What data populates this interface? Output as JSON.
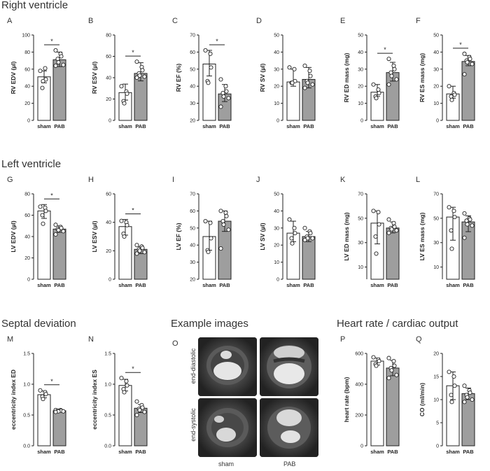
{
  "sections": {
    "right": "Right ventricle",
    "left": "Left ventricle",
    "septal": "Septal deviation",
    "example": "Example images",
    "heart": "Heart rate / cardiac output"
  },
  "colors": {
    "sham": "#ffffff",
    "pab": "#9e9e9e",
    "stroke": "#222222"
  },
  "images": {
    "col_labels": [
      "sham",
      "PAB"
    ],
    "row_labels": [
      "end-diastolic",
      "end-systolic"
    ]
  },
  "chart_data": [
    {
      "letter": "A",
      "type": "bar",
      "categories": [
        "sham",
        "PAB"
      ],
      "ylabel": "RV EDV (µl)",
      "yticks": [
        0,
        20,
        40,
        60,
        80,
        100
      ],
      "ylim": [
        0,
        100
      ],
      "means": [
        51,
        71
      ],
      "err": [
        [
          44,
          58
        ],
        [
          63,
          80
        ]
      ],
      "points": [
        [
          58,
          61,
          48,
          38,
          46
        ],
        [
          82,
          78,
          75,
          72,
          68,
          65,
          64
        ]
      ],
      "sig": true
    },
    {
      "letter": "B",
      "type": "bar",
      "categories": [
        "sham",
        "PAB"
      ],
      "ylabel": "RV ESV (µl)",
      "yticks": [
        0,
        20,
        40,
        60,
        80
      ],
      "ylim": [
        0,
        80
      ],
      "means": [
        26,
        44
      ],
      "err": [
        [
          19,
          34
        ],
        [
          37,
          54
        ]
      ],
      "points": [
        [
          32,
          27,
          25,
          18,
          16
        ],
        [
          55,
          50,
          47,
          44,
          42,
          41,
          40
        ]
      ],
      "sig": true
    },
    {
      "letter": "C",
      "type": "bar",
      "categories": [
        "sham",
        "PAB"
      ],
      "ylabel": "RV EF (%)",
      "yticks": [
        20,
        30,
        40,
        50,
        60,
        70
      ],
      "ylim": [
        20,
        70
      ],
      "means": [
        53,
        35.5
      ],
      "err": [
        [
          46,
          61
        ],
        [
          31,
          41
        ]
      ],
      "points": [
        [
          61,
          59,
          51,
          43,
          42
        ],
        [
          44,
          40,
          37,
          36,
          34,
          33,
          28
        ]
      ],
      "sig": true
    },
    {
      "letter": "D",
      "type": "bar",
      "categories": [
        "sham",
        "PAB"
      ],
      "ylabel": "RV SV (µl)",
      "yticks": [
        0,
        10,
        20,
        30,
        40,
        50
      ],
      "ylim": [
        0,
        50
      ],
      "means": [
        22.5,
        24
      ],
      "err": [
        [
          20,
          30
        ],
        [
          19,
          31
        ]
      ],
      "points": [
        [
          31,
          30,
          23,
          22,
          22
        ],
        [
          32,
          29,
          26,
          23,
          22,
          21,
          19
        ]
      ],
      "sig": false
    },
    {
      "letter": "E",
      "type": "bar",
      "categories": [
        "sham",
        "PAB"
      ],
      "ylabel": "RV ED mass (mg)",
      "yticks": [
        0,
        10,
        20,
        30,
        40,
        50
      ],
      "ylim": [
        0,
        50
      ],
      "means": [
        16.5,
        28
      ],
      "err": [
        [
          14,
          21
        ],
        [
          23,
          34
        ]
      ],
      "points": [
        [
          21,
          18,
          16,
          14,
          13
        ],
        [
          36,
          32,
          30,
          28,
          26,
          24,
          21
        ]
      ],
      "sig": true
    },
    {
      "letter": "F",
      "type": "bar",
      "categories": [
        "sham",
        "PAB"
      ],
      "ylabel": "RV ES mass (mg)",
      "yticks": [
        0,
        10,
        20,
        30,
        40,
        50
      ],
      "ylim": [
        0,
        50
      ],
      "means": [
        15.5,
        34.5
      ],
      "err": [
        [
          13,
          20
        ],
        [
          32,
          38
        ]
      ],
      "points": [
        [
          20,
          16,
          15,
          14,
          12
        ],
        [
          39,
          37,
          36,
          35,
          34,
          33,
          27
        ]
      ],
      "sig": true
    },
    {
      "letter": "G",
      "type": "bar",
      "categories": [
        "sham",
        "PAB"
      ],
      "ylabel": "LV EDV (µl)",
      "yticks": [
        0,
        20,
        40,
        60,
        80
      ],
      "ylim": [
        0,
        80
      ],
      "means": [
        64,
        47
      ],
      "err": [
        [
          57,
          70
        ],
        [
          44,
          50
        ]
      ],
      "points": [
        [
          68,
          67,
          64,
          60,
          52
        ],
        [
          51,
          49,
          48,
          47,
          46,
          45,
          42
        ]
      ],
      "sig": true
    },
    {
      "letter": "H",
      "type": "bar",
      "categories": [
        "sham",
        "PAB"
      ],
      "ylabel": "LV ESV (µl)",
      "yticks": [
        0,
        20,
        40,
        60
      ],
      "ylim": [
        0,
        60
      ],
      "means": [
        37,
        21
      ],
      "err": [
        [
          31,
          42
        ],
        [
          18,
          23
        ]
      ],
      "points": [
        [
          41,
          40,
          38,
          32,
          30
        ],
        [
          24,
          23,
          22,
          21,
          20,
          19,
          18
        ]
      ],
      "sig": true
    },
    {
      "letter": "I",
      "type": "bar",
      "categories": [
        "sham",
        "PAB"
      ],
      "ylabel": "LV EF (%)",
      "yticks": [
        20,
        30,
        40,
        50,
        60,
        70
      ],
      "ylim": [
        20,
        70
      ],
      "means": [
        45,
        54
      ],
      "err": [
        [
          37,
          54
        ],
        [
          48,
          60
        ]
      ],
      "points": [
        [
          54,
          53,
          44,
          37,
          36
        ],
        [
          60,
          59,
          57,
          54,
          52,
          49,
          38
        ]
      ],
      "sig": false
    },
    {
      "letter": "J",
      "type": "bar",
      "categories": [
        "sham",
        "PAB"
      ],
      "ylabel": "LV SV (µl)",
      "yticks": [
        0,
        10,
        20,
        30,
        40,
        50
      ],
      "ylim": [
        0,
        50
      ],
      "means": [
        27,
        25
      ],
      "err": [
        [
          22,
          34
        ],
        [
          22,
          28
        ]
      ],
      "points": [
        [
          35,
          30,
          27,
          24,
          21
        ],
        [
          30,
          28,
          27,
          25,
          24,
          24,
          23
        ]
      ],
      "sig": false
    },
    {
      "letter": "K",
      "type": "bar",
      "categories": [
        "sham",
        "PAB"
      ],
      "ylabel": "LV ED mass (mg)",
      "yticks": [
        10,
        30,
        50,
        70
      ],
      "ylim": [
        0,
        70
      ],
      "means": [
        46,
        42
      ],
      "err": [
        [
          29,
          56
        ],
        [
          38,
          47
        ]
      ],
      "points": [
        [
          56,
          55,
          45,
          35,
          21
        ],
        [
          49,
          46,
          43,
          42,
          41,
          40,
          38
        ]
      ],
      "sig": false
    },
    {
      "letter": "L",
      "type": "bar",
      "categories": [
        "sham",
        "PAB"
      ],
      "ylabel": "LV ES mass (mg)",
      "yticks": [
        10,
        30,
        50,
        70
      ],
      "ylim": [
        0,
        70
      ],
      "means": [
        51,
        47
      ],
      "err": [
        [
          32,
          59
        ],
        [
          39,
          52
        ]
      ],
      "points": [
        [
          59,
          56,
          51,
          40,
          25
        ],
        [
          54,
          50,
          49,
          48,
          45,
          44,
          34
        ]
      ],
      "sig": false
    },
    {
      "letter": "M",
      "type": "bar",
      "categories": [
        "sham",
        "PAB"
      ],
      "ylabel": "eccentricity index ED",
      "yticks": [
        0.0,
        0.5,
        1.0,
        1.5
      ],
      "ylim": [
        0,
        1.5
      ],
      "means": [
        0.83,
        0.57
      ],
      "err": [
        [
          0.78,
          0.89
        ],
        [
          0.55,
          0.58
        ]
      ],
      "points": [
        [
          0.9,
          0.87,
          0.84,
          0.8,
          0.76
        ],
        [
          0.58,
          0.58,
          0.57,
          0.57,
          0.56,
          0.56,
          0.55
        ]
      ],
      "sig": true
    },
    {
      "letter": "N",
      "type": "bar",
      "categories": [
        "sham",
        "PAB"
      ],
      "ylabel": "eccentricity index ES",
      "yticks": [
        0.0,
        0.5,
        1.0,
        1.5
      ],
      "ylim": [
        0,
        1.5
      ],
      "means": [
        0.98,
        0.61
      ],
      "err": [
        [
          0.89,
          1.08
        ],
        [
          0.54,
          0.67
        ]
      ],
      "points": [
        [
          1.1,
          1.05,
          0.98,
          0.92,
          0.87
        ],
        [
          0.72,
          0.66,
          0.62,
          0.6,
          0.58,
          0.55,
          0.5
        ]
      ],
      "sig": true
    },
    {
      "letter": "P",
      "type": "bar",
      "categories": [
        "sham",
        "PAB"
      ],
      "ylabel": "heart rate (bpm)",
      "yticks": [
        0,
        200,
        400,
        600
      ],
      "ylim": [
        0,
        600
      ],
      "means": [
        550,
        505
      ],
      "err": [
        [
          525,
          570
        ],
        [
          455,
          555
        ]
      ],
      "points": [
        [
          575,
          560,
          550,
          530,
          520
        ],
        [
          570,
          550,
          520,
          505,
          490,
          460,
          440
        ]
      ],
      "sig": false
    },
    {
      "letter": "Q",
      "type": "bar",
      "categories": [
        "sham",
        "PAB"
      ],
      "ylabel": "CO (ml/min)",
      "yticks": [
        0,
        5,
        10,
        15,
        20
      ],
      "ylim": [
        0,
        20
      ],
      "means": [
        13,
        11.3
      ],
      "err": [
        [
          10,
          16
        ],
        [
          10,
          12.5
        ]
      ],
      "points": [
        [
          16,
          15,
          13,
          11,
          9.5
        ],
        [
          13,
          12,
          11.5,
          11,
          10.5,
          10,
          9.5
        ]
      ],
      "sig": false
    }
  ]
}
